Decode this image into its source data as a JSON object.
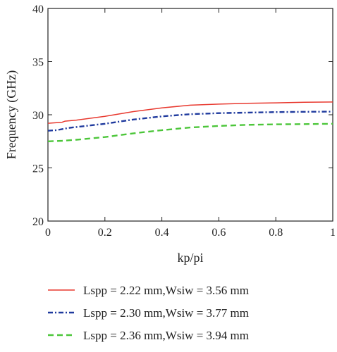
{
  "chart_data": {
    "type": "line",
    "xlabel": "kp/pi",
    "ylabel": "Frequency (GHz)",
    "xlim": [
      0,
      1
    ],
    "ylim": [
      20,
      40
    ],
    "xticks": [
      "0",
      "0.2",
      "0.4",
      "0.6",
      "0.8",
      "1"
    ],
    "yticks": [
      "20",
      "25",
      "30",
      "35",
      "40"
    ],
    "grid": false,
    "legend_position": "bottom",
    "series": [
      {
        "name": "Lspp = 2.22 mm,Wsiw = 3.56 mm",
        "color": "#e8392f",
        "dash": "solid",
        "x": [
          0,
          0.03,
          0.05,
          0.06,
          0.1,
          0.2,
          0.3,
          0.4,
          0.5,
          0.6,
          0.7,
          0.8,
          0.9,
          1.0
        ],
        "y": [
          29.2,
          29.25,
          29.3,
          29.4,
          29.5,
          29.85,
          30.3,
          30.65,
          30.9,
          31.0,
          31.07,
          31.12,
          31.17,
          31.2
        ]
      },
      {
        "name": "Lspp = 2.30 mm,Wsiw = 3.77 mm",
        "color": "#1f3a9e",
        "dash": "dashdot",
        "x": [
          0,
          0.03,
          0.05,
          0.07,
          0.1,
          0.2,
          0.3,
          0.4,
          0.5,
          0.6,
          0.7,
          0.8,
          0.9,
          1.0
        ],
        "y": [
          28.5,
          28.55,
          28.65,
          28.75,
          28.85,
          29.15,
          29.55,
          29.85,
          30.05,
          30.15,
          30.2,
          30.25,
          30.28,
          30.3
        ]
      },
      {
        "name": "Lspp = 2.36 mm,Wsiw = 3.94 mm",
        "color": "#4cc63a",
        "dash": "dashed",
        "x": [
          0,
          0.05,
          0.1,
          0.2,
          0.3,
          0.4,
          0.5,
          0.6,
          0.7,
          0.8,
          0.9,
          1.0
        ],
        "y": [
          27.5,
          27.55,
          27.65,
          27.9,
          28.25,
          28.55,
          28.8,
          28.95,
          29.05,
          29.1,
          29.12,
          29.15
        ]
      }
    ]
  }
}
